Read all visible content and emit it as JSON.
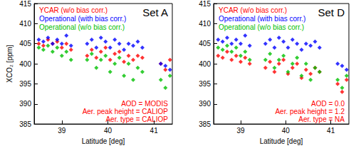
{
  "chart_data": [
    {
      "type": "scatter",
      "title": "Set A",
      "xlabel": "Latitude [deg]",
      "ylabel": "XCO₂ [ppm]",
      "xlim": [
        38.4,
        41.4
      ],
      "xticks": [
        39,
        40,
        41
      ],
      "ylim": [
        385,
        415
      ],
      "yticks": [
        385,
        390,
        395,
        400,
        405,
        410,
        415
      ],
      "grid": false,
      "legend": "upper left",
      "marker": "diamond",
      "annotations": [
        "AOD = MODIS",
        "Aer. peak height = CALIOP",
        "Aer. type = CALIOP"
      ],
      "x": [
        38.5,
        38.6,
        38.7,
        38.8,
        38.9,
        39.0,
        39.1,
        39.2,
        39.55,
        39.65,
        39.75,
        39.85,
        39.95,
        40.05,
        40.15,
        40.25,
        40.35,
        40.45,
        40.55,
        40.65,
        40.75,
        41.15,
        41.25,
        41.35
      ],
      "series": [
        {
          "name": "YCAR (w/o bias corr.)",
          "color": "#ff0000",
          "values": [
            405,
            404.5,
            406,
            405,
            405.5,
            404,
            405,
            403.5,
            402,
            403.5,
            401.5,
            403,
            404,
            401,
            402.5,
            403,
            400.5,
            402,
            401,
            402,
            401.5,
            400,
            398.5,
            401
          ]
        },
        {
          "name": "Operational (with bias corr.)",
          "color": "#0000ff",
          "values": [
            406,
            405.5,
            406.5,
            405,
            406,
            405,
            407,
            404.5,
            405,
            406,
            404,
            406.5,
            405.5,
            404,
            406,
            405,
            403.5,
            405,
            404.5,
            405.5,
            404,
            400,
            399.5,
            398.5
          ]
        },
        {
          "name": "Operational (w/o bias corr.)",
          "color": "#00c000",
          "values": [
            404,
            403.5,
            404.5,
            403,
            404,
            402,
            403,
            401,
            401,
            402.5,
            399,
            401,
            402,
            398,
            400,
            401.5,
            397,
            400,
            396,
            399,
            398,
            396,
            394,
            397
          ]
        }
      ]
    },
    {
      "type": "scatter",
      "title": "Set D",
      "xlabel": "Latitude [deg]",
      "xlim": [
        38.4,
        41.4
      ],
      "xticks": [
        39,
        40,
        41
      ],
      "ylim": [
        385,
        415
      ],
      "yticks": [
        385,
        390,
        395,
        400,
        405,
        410,
        415
      ],
      "grid": false,
      "legend": "upper left",
      "marker": "diamond",
      "annotations": [
        "AOD = 0.0",
        "Aer. peak height = 1.2",
        "Aer. type = NA"
      ],
      "x": [
        38.5,
        38.6,
        38.7,
        38.8,
        38.9,
        39.0,
        39.1,
        39.2,
        39.55,
        39.65,
        39.75,
        39.85,
        39.95,
        40.05,
        40.15,
        40.25,
        40.35,
        40.45,
        40.55,
        40.65,
        40.75,
        41.15,
        41.25,
        41.35
      ],
      "series": [
        {
          "name": "YCAR (w/o bias corr.)",
          "color": "#ff0000",
          "values": [
            402,
            401.5,
            403,
            401,
            402,
            400.5,
            401.5,
            400,
            399,
            400.5,
            398,
            400,
            401,
            397.5,
            399,
            400,
            396.5,
            398.5,
            397.5,
            399,
            398,
            395,
            393,
            396
          ]
        },
        {
          "name": "Operational (with bias corr.)",
          "color": "#0000ff",
          "values": [
            406,
            405.5,
            406.5,
            405,
            406,
            405,
            407,
            404.5,
            405,
            406,
            404,
            406.5,
            405.5,
            404,
            406,
            405,
            403.5,
            405,
            404.5,
            405.5,
            404,
            400,
            399.5,
            398.5
          ]
        },
        {
          "name": "Operational (w/o bias corr.)",
          "color": "#00c000",
          "values": [
            404,
            403.5,
            404.5,
            403,
            404,
            402,
            403,
            401,
            401,
            402.5,
            399,
            401,
            402,
            398,
            400,
            401.5,
            397,
            400,
            396,
            399,
            398,
            396,
            394,
            397
          ]
        }
      ]
    }
  ]
}
